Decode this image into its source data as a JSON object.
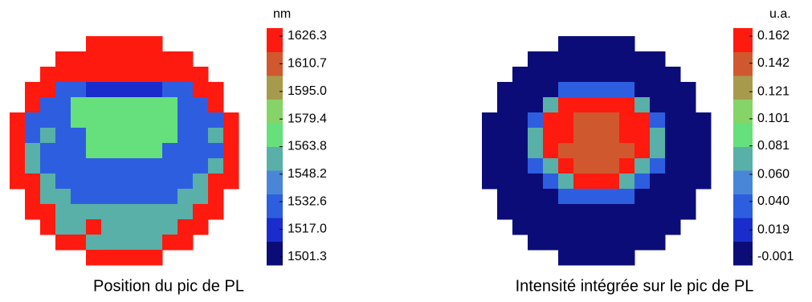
{
  "chart_data": [
    {
      "type": "heatmap",
      "title": "Position du pic de PL",
      "colorbar_label": "nm",
      "zlim": [
        1501.3,
        1626.3
      ],
      "zticks": [
        1626.3,
        1610.7,
        {
          "value": 1595.0,
          "label": "1595.0"
        },
        1579.4,
        1563.8,
        1548.2,
        1532.6,
        {
          "value": 1517.0,
          "label": "1517.0"
        },
        1501.3
      ],
      "colors": [
        "#0c0c78",
        "#1a2ccc",
        "#2e5ee0",
        "#4a86d8",
        "#58b0a8",
        "#66e07c",
        "#86d468",
        "#a89a4c",
        "#d0582e",
        "#ff1a10"
      ],
      "z": [
        [
          null,
          null,
          null,
          null,
          null,
          1626.3,
          1626.3,
          1626.3,
          1626.3,
          1626.3,
          null,
          null,
          null,
          null,
          null
        ],
        [
          null,
          null,
          null,
          1626.3,
          1626.3,
          1626.3,
          1626.3,
          1626.3,
          1626.3,
          1626.3,
          1626.3,
          1626.3,
          null,
          null,
          null
        ],
        [
          null,
          null,
          1626.3,
          1626.3,
          1626.3,
          1626.3,
          1626.3,
          1626.3,
          1626.3,
          1626.3,
          1626.3,
          1626.3,
          1626.3,
          null,
          null
        ],
        [
          null,
          1626.3,
          1626.3,
          1535,
          1535,
          1520,
          1520,
          1520,
          1520,
          1520,
          1535,
          1535,
          1626.3,
          1626.3,
          null
        ],
        [
          null,
          1626.3,
          1535,
          1535,
          1565,
          1565,
          1565,
          1565,
          1565,
          1565,
          1565,
          1535,
          1535,
          1626.3,
          null
        ],
        [
          1626.3,
          1535,
          1535,
          1535,
          1565,
          1565,
          1565,
          1565,
          1565,
          1565,
          1565,
          1535,
          1535,
          1535,
          1626.3
        ],
        [
          1626.3,
          1535,
          1555,
          1535,
          1535,
          1565,
          1565,
          1565,
          1565,
          1565,
          1565,
          1535,
          1535,
          1555,
          1626.3
        ],
        [
          1626.3,
          1555,
          1535,
          1535,
          1535,
          1565,
          1565,
          1565,
          1565,
          1565,
          1535,
          1535,
          1535,
          1535,
          1626.3
        ],
        [
          1626.3,
          1555,
          1535,
          1535,
          1535,
          1535,
          1535,
          1535,
          1535,
          1535,
          1535,
          1535,
          1535,
          1555,
          1626.3
        ],
        [
          1626.3,
          1626.3,
          1555,
          1535,
          1535,
          1535,
          1535,
          1535,
          1535,
          1535,
          1535,
          1535,
          1555,
          1626.3,
          1626.3
        ],
        [
          null,
          1626.3,
          1555,
          1555,
          1535,
          1535,
          1535,
          1535,
          1535,
          1535,
          1535,
          1555,
          1555,
          1626.3,
          null
        ],
        [
          null,
          1626.3,
          1626.3,
          1555,
          1555,
          1555,
          1555,
          1555,
          1555,
          1555,
          1555,
          1555,
          1626.3,
          1626.3,
          null
        ],
        [
          null,
          null,
          1626.3,
          1555,
          1555,
          1626.3,
          1555,
          1555,
          1555,
          1555,
          1555,
          1626.3,
          1626.3,
          null,
          null
        ],
        [
          null,
          null,
          null,
          1626.3,
          1626.3,
          1555,
          1555,
          1555,
          1555,
          1555,
          1626.3,
          1626.3,
          null,
          null,
          null
        ],
        [
          null,
          null,
          null,
          null,
          null,
          1626.3,
          1626.3,
          1626.3,
          1626.3,
          1626.3,
          null,
          null,
          null,
          null,
          null
        ]
      ]
    },
    {
      "type": "heatmap",
      "title": "Intensité intégrée sur le pic de PL",
      "colorbar_label": "u.a.",
      "zlim": [
        -0.001,
        0.162
      ],
      "zticks": [
        0.162,
        0.142,
        0.121,
        0.101,
        0.081,
        {
          "value": 0.06,
          "label": "0.060"
        },
        {
          "value": 0.04,
          "label": "0.040"
        },
        0.019,
        -0.001
      ],
      "colors": [
        "#0c0c78",
        "#1a2ccc",
        "#2e5ee0",
        "#4a86d8",
        "#58b0a8",
        "#66e07c",
        "#86d468",
        "#a89a4c",
        "#d0582e",
        "#ff1a10"
      ],
      "z": [
        [
          null,
          null,
          null,
          null,
          null,
          0.005,
          0.005,
          0.005,
          0.005,
          0.005,
          null,
          null,
          null,
          null,
          null
        ],
        [
          null,
          null,
          null,
          0.005,
          0.005,
          0.005,
          0.005,
          0.005,
          0.005,
          0.005,
          0.005,
          0.005,
          null,
          null,
          null
        ],
        [
          null,
          null,
          0.005,
          0.005,
          0.005,
          0.005,
          0.005,
          0.005,
          0.005,
          0.005,
          0.005,
          0.005,
          0.005,
          null,
          null
        ],
        [
          null,
          0.005,
          0.005,
          0.005,
          0.005,
          0.035,
          0.035,
          0.035,
          0.035,
          0.035,
          0.005,
          0.005,
          0.005,
          0.005,
          null
        ],
        [
          null,
          0.005,
          0.005,
          0.005,
          0.075,
          0.16,
          0.16,
          0.16,
          0.16,
          0.16,
          0.075,
          0.005,
          0.005,
          0.005,
          null
        ],
        [
          0.005,
          0.005,
          0.005,
          0.035,
          0.16,
          0.16,
          0.135,
          0.135,
          0.135,
          0.16,
          0.16,
          0.035,
          0.005,
          0.005,
          0.005
        ],
        [
          0.005,
          0.005,
          0.005,
          0.075,
          0.16,
          0.16,
          0.135,
          0.135,
          0.135,
          0.16,
          0.16,
          0.075,
          0.005,
          0.005,
          0.005
        ],
        [
          0.005,
          0.005,
          0.005,
          0.075,
          0.16,
          0.135,
          0.135,
          0.135,
          0.135,
          0.135,
          0.16,
          0.075,
          0.005,
          0.005,
          0.005
        ],
        [
          0.005,
          0.005,
          0.005,
          0.035,
          0.075,
          0.16,
          0.135,
          0.135,
          0.135,
          0.16,
          0.075,
          0.035,
          0.005,
          0.005,
          0.005
        ],
        [
          0.005,
          0.005,
          0.005,
          0.005,
          0.035,
          0.075,
          0.16,
          0.16,
          0.16,
          0.075,
          0.035,
          0.005,
          0.005,
          0.005,
          0.005
        ],
        [
          null,
          0.005,
          0.005,
          0.005,
          0.005,
          0.035,
          0.035,
          0.035,
          0.035,
          0.035,
          0.005,
          0.005,
          0.005,
          0.005,
          null
        ],
        [
          null,
          0.005,
          0.005,
          0.005,
          0.005,
          0.005,
          0.005,
          0.005,
          0.005,
          0.005,
          0.005,
          0.005,
          0.005,
          0.005,
          null
        ],
        [
          null,
          null,
          0.005,
          0.005,
          0.005,
          0.005,
          0.005,
          0.005,
          0.005,
          0.005,
          0.005,
          0.005,
          0.005,
          null,
          null
        ],
        [
          null,
          null,
          null,
          0.005,
          0.005,
          0.005,
          0.005,
          0.005,
          0.005,
          0.005,
          0.005,
          0.005,
          null,
          null,
          null
        ],
        [
          null,
          null,
          null,
          null,
          null,
          0.005,
          0.005,
          0.005,
          0.005,
          0.005,
          null,
          null,
          null,
          null,
          null
        ]
      ]
    }
  ]
}
